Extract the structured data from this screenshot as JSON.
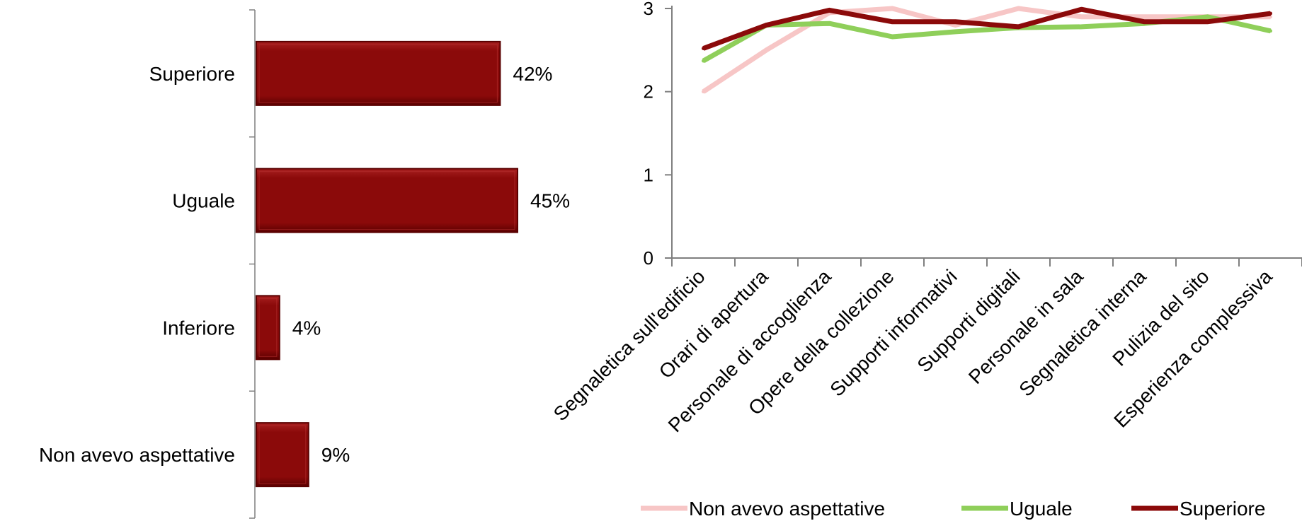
{
  "colors": {
    "bar_fill": "#8B0A0A",
    "bar_edge": "#5A0000",
    "axis": "#7f7f7f",
    "text": "#000000",
    "series": [
      "#F7C6C6",
      "#8FCF5A",
      "#8B0A0A"
    ]
  },
  "chart_data": [
    {
      "type": "bar",
      "orientation": "horizontal",
      "categories": [
        "Superiore",
        "Uguale",
        "Inferiore",
        "Non avevo aspettative"
      ],
      "values": [
        42,
        45,
        4,
        9
      ],
      "value_labels": [
        "42%",
        "45%",
        "4%",
        "9%"
      ],
      "unit": "%",
      "grid": false,
      "legend": null
    },
    {
      "type": "line",
      "categories": [
        "Segnaletica sull'edificio",
        "Orari di apertura",
        "Personale di accoglienza",
        "Opere della collezione",
        "Supporti informativi",
        "Supporti digitali",
        "Personale in sala",
        "Segnaletica interna",
        "Pulizia del sito",
        "Esperienza complessiva"
      ],
      "ylim": [
        0,
        3
      ],
      "yticks": [
        "0",
        "1",
        "2",
        "3"
      ],
      "grid": false,
      "legend": "bottom",
      "series": [
        {
          "name": "Non avevo aspettative",
          "color": "#F7C6C6",
          "values": [
            2.0,
            2.5,
            2.95,
            3.0,
            2.8,
            3.0,
            2.9,
            2.9,
            2.9,
            2.9
          ]
        },
        {
          "name": "Uguale",
          "color": "#8FCF5A",
          "values": [
            2.37,
            2.8,
            2.82,
            2.66,
            2.72,
            2.77,
            2.78,
            2.82,
            2.9,
            2.73
          ]
        },
        {
          "name": "Superiore",
          "color": "#8B0A0A",
          "values": [
            2.52,
            2.8,
            2.98,
            2.84,
            2.84,
            2.78,
            2.99,
            2.84,
            2.84,
            2.94
          ]
        }
      ]
    }
  ]
}
